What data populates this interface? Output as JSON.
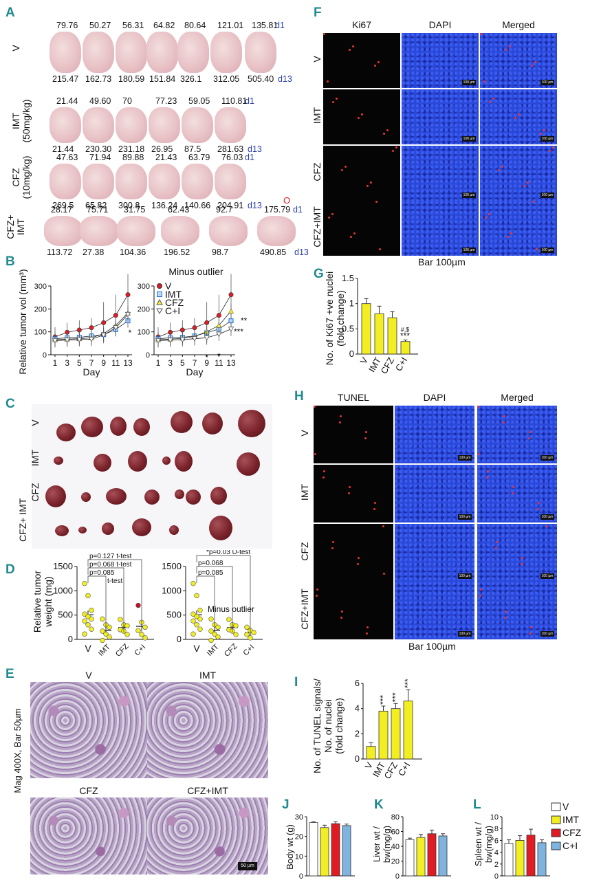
{
  "panels": {
    "A": "A",
    "B": "B",
    "C": "C",
    "D": "D",
    "E": "E",
    "F": "F",
    "G": "G",
    "H": "H",
    "I": "I",
    "J": "J",
    "K": "K",
    "L": "L"
  },
  "panelA": {
    "groups": [
      {
        "label": "V",
        "top": [
          "79.76",
          "50.27",
          "56.31",
          "64.82",
          "80.64",
          "121.01",
          "135.81"
        ],
        "bottom": [
          "215.47",
          "162.73",
          "180.59",
          "151.84",
          "326.1",
          "312.05",
          "505.40"
        ]
      },
      {
        "label": "IMT",
        "sub": "(50mg/kg)",
        "top": [
          "21.44",
          "49.60",
          "70",
          "77.23",
          "59.05",
          "110.81"
        ],
        "bottom": [
          "21.44",
          "230.30",
          "231.18",
          "26.95",
          "87.5",
          "281.63"
        ]
      },
      {
        "label": "CFZ",
        "sub": "(10mg/kg)",
        "top": [
          "47.63",
          "71.94",
          "89.88",
          "21.43",
          "63.79",
          "76.03"
        ],
        "bottom": [
          "269.5",
          "65.82",
          "300.8",
          "136.24",
          "140.66",
          "204.91"
        ]
      },
      {
        "label": "CFZ+",
        "sub": "IMT",
        "top": [
          "28.17",
          "75.71",
          "31.75",
          "62.43",
          "92.7",
          "175.79"
        ],
        "bottom": [
          "113.72",
          "27.38",
          "104.36",
          "196.52",
          "98.7",
          "490.85"
        ]
      }
    ],
    "d1": "d1",
    "d13": "d13",
    "outlier_mark": "O"
  },
  "panelB": {
    "ylabel": "Relative tumor vol (mm³)",
    "xlabel": "Day",
    "days": [
      "1",
      "3",
      "5",
      "7",
      "9",
      "11",
      "13"
    ],
    "right_title": "Minus outlier",
    "legend": [
      "V",
      "IMT",
      "CFZ",
      "C+I"
    ],
    "sig": {
      "star1": "*",
      "star2": "**",
      "star3": "***"
    }
  },
  "chart_data": [
    {
      "type": "line",
      "title": "",
      "xlabel": "Day",
      "ylabel": "Relative tumor vol (mm3)",
      "x": [
        1,
        3,
        5,
        7,
        9,
        11,
        13
      ],
      "ylim": [
        0,
        300
      ],
      "series": [
        {
          "name": "V",
          "values": [
            78,
            98,
            108,
            118,
            140,
            172,
            262
          ]
        },
        {
          "name": "IMT",
          "values": [
            70,
            74,
            76,
            82,
            88,
            110,
            148
          ]
        },
        {
          "name": "CFZ",
          "values": [
            65,
            68,
            70,
            74,
            92,
            128,
            182
          ]
        },
        {
          "name": "C+I",
          "values": [
            62,
            64,
            66,
            68,
            86,
            118,
            176
          ]
        }
      ]
    },
    {
      "type": "line",
      "title": "Minus outlier",
      "xlabel": "Day",
      "ylabel": "",
      "x": [
        1,
        3,
        5,
        7,
        9,
        11,
        13
      ],
      "ylim": [
        0,
        300
      ],
      "series": [
        {
          "name": "V",
          "values": [
            78,
            98,
            108,
            118,
            140,
            172,
            262
          ]
        },
        {
          "name": "IMT",
          "values": [
            70,
            74,
            76,
            82,
            96,
            112,
            148
          ]
        },
        {
          "name": "CFZ",
          "values": [
            65,
            68,
            72,
            80,
            100,
            128,
            190
          ]
        },
        {
          "name": "C+I",
          "values": [
            62,
            64,
            66,
            70,
            74,
            90,
            112
          ]
        }
      ]
    },
    {
      "type": "bar",
      "title": "",
      "ylabel": "No. of Ki67 +ve nuclei (fold change)",
      "categories": [
        "V",
        "IMT",
        "CFZ",
        "C+I"
      ],
      "values": [
        1.0,
        0.8,
        0.72,
        0.25
      ],
      "errors": [
        0.1,
        0.15,
        0.12,
        0.03
      ],
      "ylim": [
        0,
        1.5
      ]
    },
    {
      "type": "bar",
      "title": "",
      "ylabel": "No. of TUNEL signals/ No. of nuclei (fold change)",
      "categories": [
        "V",
        "IMT",
        "CFZ",
        "C+I"
      ],
      "values": [
        1.0,
        3.8,
        4.0,
        4.6
      ],
      "errors": [
        0.3,
        0.4,
        0.4,
        0.9
      ],
      "ylim": [
        0,
        6
      ]
    },
    {
      "type": "bar",
      "title": "",
      "ylabel": "Body wt (g)",
      "categories": [
        "V",
        "IMT",
        "CFZ",
        "C+I"
      ],
      "values": [
        27,
        24.5,
        26.5,
        25.5
      ],
      "errors": [
        0.5,
        1.2,
        1.0,
        0.8
      ],
      "ylim": [
        0,
        30
      ]
    },
    {
      "type": "bar",
      "title": "",
      "ylabel": "Liver wt / bw(mg/g)",
      "categories": [
        "V",
        "IMT",
        "CFZ",
        "C+I"
      ],
      "values": [
        49,
        52,
        57,
        54
      ],
      "errors": [
        2,
        4,
        5,
        3
      ],
      "ylim": [
        0,
        80
      ]
    },
    {
      "type": "bar",
      "title": "",
      "ylabel": "Spleen wt / bw(mg/g)",
      "categories": [
        "V",
        "IMT",
        "CFZ",
        "C+I"
      ],
      "values": [
        5.5,
        6.0,
        6.9,
        5.6
      ],
      "errors": [
        0.6,
        0.8,
        1.0,
        0.5
      ],
      "ylim": [
        0,
        10
      ]
    },
    {
      "type": "scatter",
      "title": "",
      "ylabel": "Relative tumor weight (mg)",
      "categories": [
        "V",
        "IMT",
        "CFZ",
        "C+I"
      ],
      "ylim": [
        0,
        1500
      ]
    }
  ],
  "panelC": {
    "rows": [
      "V",
      "IMT",
      "CFZ",
      "CFZ+ IMT"
    ]
  },
  "panelD": {
    "ylabel1": "Relative tumor",
    "ylabel2": "weight (mg)",
    "ticks": [
      "0",
      "500",
      "1000",
      "1500"
    ],
    "cats": [
      "V",
      "IMT",
      "CFZ",
      "C+I"
    ],
    "left_annot": [
      "p=0.127 t-test",
      "p=0.068 t-test",
      "p=0.085",
      "t-test"
    ],
    "right_annot": [
      "*p=0.03 U-test",
      "p=0.068",
      "p=0.085"
    ],
    "minus_outlier": "Minus outlier"
  },
  "panelE": {
    "titles": [
      "V",
      "IMT",
      "CFZ",
      "CFZ+IMT"
    ],
    "side": "Mag 400X, Bar 50µm",
    "scalebar": "50 µm"
  },
  "panelF": {
    "cols": [
      "Ki67",
      "DAPI",
      "Merged"
    ],
    "rows": [
      "V",
      "IMT",
      "CFZ",
      "CFZ+IMT"
    ],
    "bar": "Bar 100µm",
    "scalebar": "100 µm"
  },
  "panelG": {
    "ylabel1": "No. of Ki67 +ve nuclei",
    "ylabel2": "(fold change)",
    "ticks": [
      "0",
      "0.5",
      "1",
      "1.5"
    ],
    "cats": [
      "V",
      "IMT",
      "CFZ",
      "C+I"
    ],
    "sig1": "#,$",
    "sig2": "***"
  },
  "panelH": {
    "cols": [
      "TUNEL",
      "DAPI",
      "Merged"
    ],
    "rows": [
      "V",
      "IMT",
      "CFZ",
      "CFZ+IMT"
    ],
    "bar": "Bar 100µm",
    "scalebar": "100 µm"
  },
  "panelI": {
    "ylabel1": "No. of TUNEL signals/",
    "ylabel2": "No. of nuclei",
    "ylabel3": "(fold change)",
    "ticks": [
      "0",
      "2",
      "4",
      "6"
    ],
    "cats": [
      "V",
      "IMT",
      "CFZ",
      "C+I"
    ],
    "sig": "***"
  },
  "panelJ": {
    "ylabel": "Body wt (g)",
    "ticks": [
      "0",
      "10",
      "20",
      "30"
    ]
  },
  "panelK": {
    "ylabel1": "Liver wt /",
    "ylabel2": "bw(mg/g)",
    "ticks": [
      "0",
      "20",
      "40",
      "60",
      "80"
    ]
  },
  "panelL": {
    "ylabel1": "Spleen wt /",
    "ylabel2": "bw(mg/g)",
    "ticks": [
      "0",
      "2",
      "4",
      "6",
      "8",
      "10"
    ]
  },
  "legendJKL": [
    "V",
    "IMT",
    "CFZ",
    "C+I"
  ],
  "colors": {
    "V": "#ffffff",
    "IMT": "#f2ee22",
    "CFZ": "#e01b24",
    "CI": "#7fb3e0",
    "teal": "#1f8a8f",
    "blue": "#2a3fa8"
  }
}
